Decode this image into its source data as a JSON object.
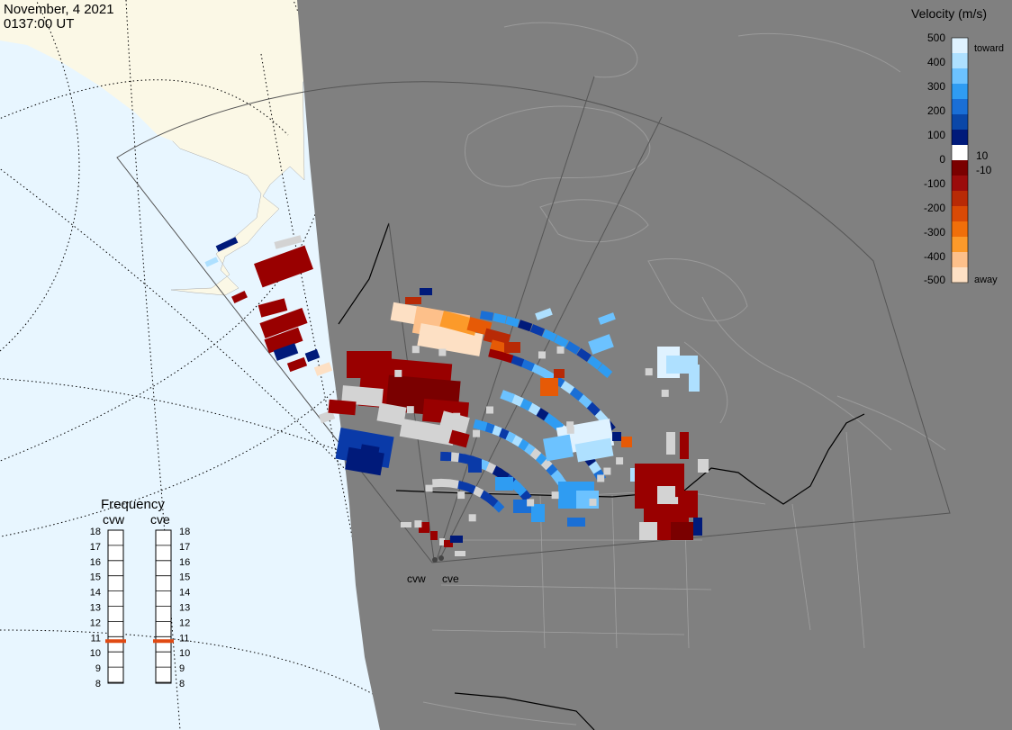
{
  "header": {
    "date": "November, 4 2021",
    "time": "0137:00 UT"
  },
  "colors": {
    "ocean": "#e8f6ff",
    "land": "#fbf8e6",
    "night": "#808080",
    "fov_outline": "#555555",
    "ground_scatter": "#d3d3d3"
  },
  "legend": {
    "title": "Velocity (m/s)",
    "toward_label": "toward",
    "away_label": "away",
    "tick_labels": [
      "500",
      "400",
      "300",
      "200",
      "100",
      "0",
      "-100",
      "-200",
      "-300",
      "-400",
      "-500"
    ],
    "inner_labels": [
      "10",
      "-10"
    ],
    "colorscale": [
      "#dff2ff",
      "#aee0ff",
      "#6cc2ff",
      "#2f9cf2",
      "#1a6fd6",
      "#0a47a8",
      "#001a7a",
      "#ffffff",
      "#7a0000",
      "#9b0c0c",
      "#b82a06",
      "#d94a06",
      "#f06f0a",
      "#fc9a2a",
      "#fdc08a",
      "#fde0c4"
    ]
  },
  "frequency_panel": {
    "title": "Frequency",
    "radars": [
      "cvw",
      "cve"
    ],
    "scale": [
      "18",
      "17",
      "16",
      "15",
      "14",
      "13",
      "12",
      "11",
      "10",
      "9",
      "8"
    ],
    "values_mhz": [
      11,
      11
    ]
  },
  "radar_labels": [
    "cvw",
    "cve"
  ],
  "data_shown": "Line-of-sight Doppler velocity from the cvw and cve SuperDARN radars; red = away, blue = toward, gray = ground scatter"
}
